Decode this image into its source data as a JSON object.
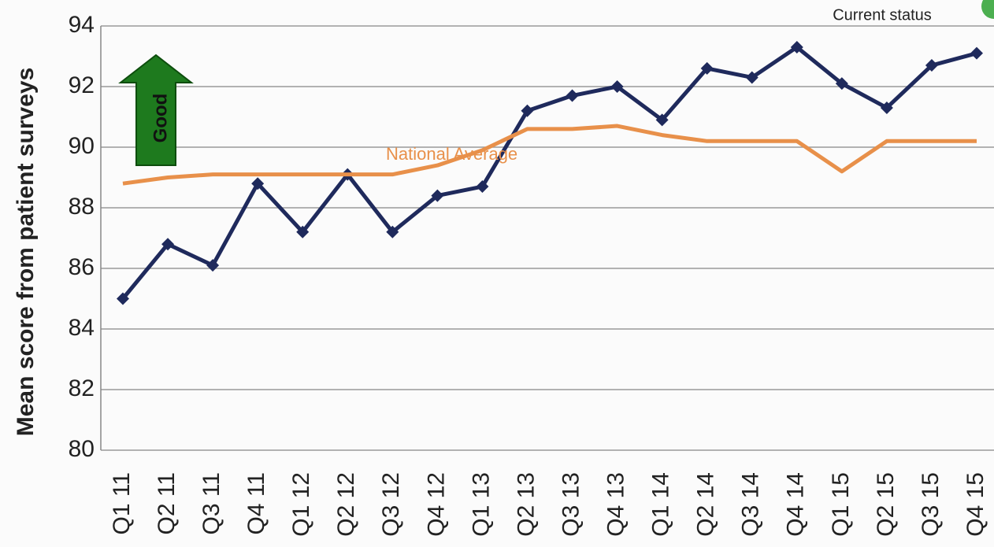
{
  "chart_data": {
    "type": "line",
    "y_label": "Mean score from patient surveys",
    "annotations": {
      "good": "Good",
      "current_status": "Current status"
    },
    "categories": [
      "Q1 11",
      "Q2 11",
      "Q3 11",
      "Q4 11",
      "Q1 12",
      "Q2 12",
      "Q3 12",
      "Q4 12",
      "Q1 13",
      "Q2 13",
      "Q3 13",
      "Q4 13",
      "Q1 14",
      "Q2 14",
      "Q3 14",
      "Q4 14",
      "Q1 15",
      "Q2 15",
      "Q3 15",
      "Q4 15"
    ],
    "series": [
      {
        "color": "#1f2a5c",
        "markers": true,
        "values": [
          85.0,
          86.8,
          86.1,
          88.8,
          87.2,
          89.1,
          87.2,
          88.4,
          88.7,
          91.2,
          91.7,
          92.0,
          90.9,
          92.6,
          92.3,
          93.3,
          92.1,
          91.3,
          92.7,
          93.1
        ]
      },
      {
        "name": "National Average",
        "color": "#e8904a",
        "markers": false,
        "values": [
          88.8,
          89.0,
          89.1,
          89.1,
          89.1,
          89.1,
          89.1,
          89.4,
          89.9,
          90.6,
          90.6,
          90.7,
          90.4,
          90.2,
          90.2,
          90.2,
          89.2,
          90.2,
          90.2,
          90.2
        ]
      }
    ],
    "ylim": [
      80,
      94
    ],
    "yticks": [
      80,
      82,
      84,
      86,
      88,
      90,
      92,
      94
    ],
    "grid": true
  }
}
